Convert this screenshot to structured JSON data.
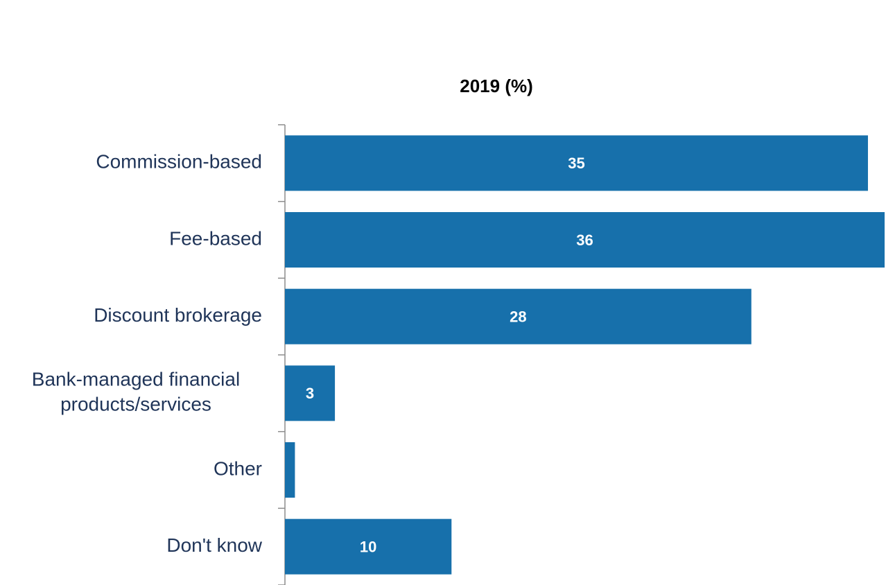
{
  "chart_data": {
    "type": "barh",
    "title": "2019 (%)",
    "categories": [
      "Commission-based",
      "Fee-based",
      "Discount brokerage",
      "Bank-managed financial\nproducts/services",
      "Other",
      "Don't know"
    ],
    "values": [
      35,
      36,
      28,
      3,
      0.6,
      10
    ],
    "value_labels": [
      "35",
      "36",
      "28",
      "3",
      null,
      "10"
    ],
    "color": "#1770ab",
    "xlim": [
      0,
      36
    ]
  }
}
